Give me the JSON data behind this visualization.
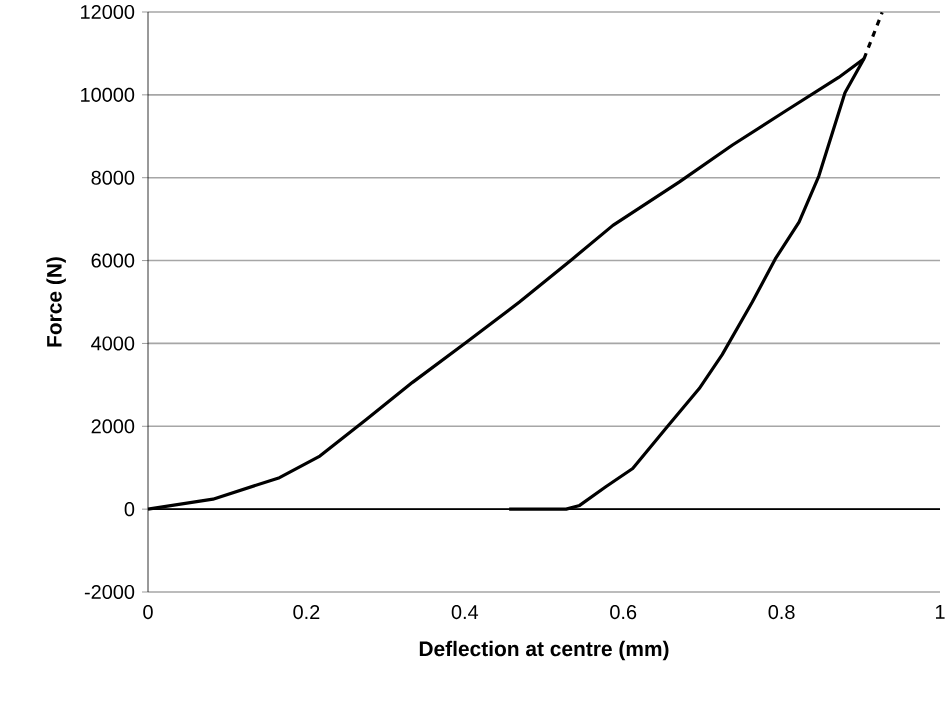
{
  "chart_data": {
    "type": "line",
    "xlabel": "Deflection at centre (mm)",
    "ylabel": "Force (N)",
    "xlim": [
      0,
      1
    ],
    "xticks": [
      0,
      0.2,
      0.4,
      0.6,
      0.8,
      1
    ],
    "ylim": [
      -2000,
      12000
    ],
    "yticks": [
      -2000,
      0,
      2000,
      4000,
      6000,
      8000,
      10000,
      12000
    ],
    "grid": "y",
    "marker": "none",
    "line_style": "solid",
    "series": [
      {
        "color": "#000000",
        "x": [
          0,
          0.082,
          0.166,
          0.217,
          0.276,
          0.334,
          0.402,
          0.469,
          0.536,
          0.587,
          0.671,
          0.738,
          0.805,
          0.872,
          0.904
        ],
        "values": [
          0,
          240,
          760,
          1280,
          2170,
          3060,
          4030,
          5000,
          6040,
          6850,
          7900,
          8790,
          9610,
          10420,
          10870
        ]
      },
      {
        "color": "#000000",
        "x": [
          0.904,
          0.88,
          0.847,
          0.822,
          0.792,
          0.763,
          0.725,
          0.696,
          0.654,
          0.612,
          0.578,
          0.545,
          0.528,
          0.456
        ],
        "values": [
          10870,
          10050,
          8040,
          6930,
          6040,
          5000,
          3730,
          2910,
          1950,
          980,
          540,
          90,
          0,
          0
        ]
      },
      {
        "color": "#000000",
        "line_style": "dashed",
        "x": [
          0.904,
          0.927
        ],
        "values": [
          10870,
          11990
        ]
      }
    ]
  }
}
